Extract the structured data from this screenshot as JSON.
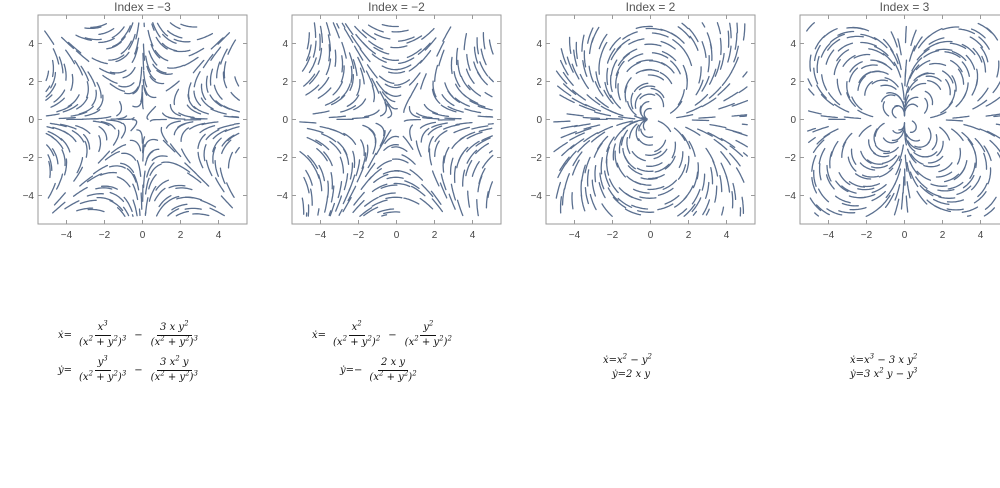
{
  "panels": [
    {
      "title": "Index  = −3",
      "field": "index_minus3"
    },
    {
      "title": "Index  = −2",
      "field": "index_minus2"
    },
    {
      "title": "Index  = 2",
      "field": "index_2"
    },
    {
      "title": "Index  = 3",
      "field": "index_3"
    }
  ],
  "ticks": {
    "x": [
      "−4",
      "−2",
      "0",
      "2",
      "4"
    ],
    "y": [
      "4",
      "2",
      "0",
      "−2",
      "−4"
    ]
  },
  "axis_range": [
    -5.5,
    5.5
  ],
  "colors": {
    "stream": "#5a6f8f",
    "frame": "#9a9a9a"
  },
  "equations": {
    "p1": {
      "xdot_lhs": "ẋ=",
      "xdot_t1_num": "x3",
      "xdot_t1_den": "(x2 + y2)3",
      "xdot_op": "−",
      "xdot_t2_num": "3 x y2",
      "xdot_t2_den": "(x2 + y2)3",
      "ydot_lhs": "ẏ=",
      "ydot_t1_num": "y3",
      "ydot_t1_den": "(x2 + y2)3",
      "ydot_op": "−",
      "ydot_t2_num": "3 x2 y",
      "ydot_t2_den": "(x2 + y2)3"
    },
    "p2": {
      "xdot_lhs": "ẋ=",
      "xdot_t1_num": "x2",
      "xdot_t1_den": "(x2 + y2)2",
      "xdot_op": "−",
      "xdot_t2_num": "y2",
      "xdot_t2_den": "(x2 + y2)2",
      "ydot_lhs": "ẏ=−",
      "ydot_num": "2 x y",
      "ydot_den": "(x2 + y2)2"
    },
    "p3": {
      "xdot": "ẋ=x2 − y2",
      "ydot": "ẏ=2 x y"
    },
    "p4": {
      "xdot": "ẋ=x3 − 3 x y2",
      "ydot": "ẏ=3 x2 y − y3"
    }
  }
}
